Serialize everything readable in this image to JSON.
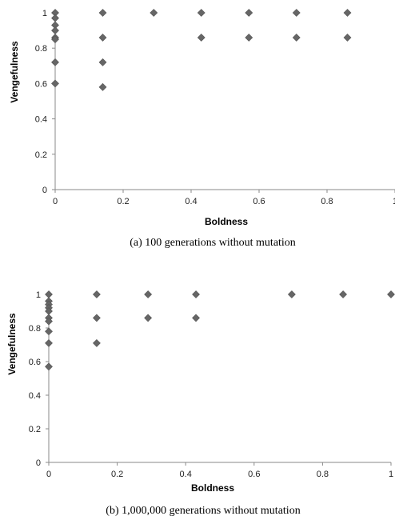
{
  "chart_data": [
    {
      "type": "scatter",
      "xlabel": "Boldness",
      "ylabel": "Vengefulness",
      "caption": "(a) 100 generations without mutation",
      "xlim": [
        0,
        1
      ],
      "ylim": [
        0,
        1
      ],
      "xticks": [
        0,
        0.2,
        0.4,
        0.6,
        0.8,
        1
      ],
      "yticks": [
        0,
        0.2,
        0.4,
        0.6,
        0.8,
        1
      ],
      "xtick_labels": [
        "0",
        "0.2",
        "0.4",
        "0.6",
        "0.8",
        "1"
      ],
      "ytick_labels": [
        "0",
        "0.2",
        "0.4",
        "0.6",
        "0.8",
        "1"
      ],
      "marker_color": "#666666",
      "grid": false,
      "points": [
        {
          "x": 0,
          "y": 1
        },
        {
          "x": 0,
          "y": 0.97
        },
        {
          "x": 0,
          "y": 0.93
        },
        {
          "x": 0,
          "y": 0.9
        },
        {
          "x": 0,
          "y": 0.86
        },
        {
          "x": 0,
          "y": 0.85
        },
        {
          "x": 0,
          "y": 0.72
        },
        {
          "x": 0,
          "y": 0.6
        },
        {
          "x": 0.14,
          "y": 1
        },
        {
          "x": 0.14,
          "y": 0.86
        },
        {
          "x": 0.14,
          "y": 0.72
        },
        {
          "x": 0.14,
          "y": 0.58
        },
        {
          "x": 0.29,
          "y": 1
        },
        {
          "x": 0.43,
          "y": 1
        },
        {
          "x": 0.43,
          "y": 0.86
        },
        {
          "x": 0.57,
          "y": 1
        },
        {
          "x": 0.57,
          "y": 0.86
        },
        {
          "x": 0.71,
          "y": 1
        },
        {
          "x": 0.71,
          "y": 0.86
        },
        {
          "x": 0.86,
          "y": 1
        },
        {
          "x": 0.86,
          "y": 0.86
        }
      ]
    },
    {
      "type": "scatter",
      "xlabel": "Boldness",
      "ylabel": "Vengefulness",
      "caption": "(b) 1,000,000 generations without mutation",
      "xlim": [
        0,
        1
      ],
      "ylim": [
        0,
        1
      ],
      "xticks": [
        0,
        0.2,
        0.4,
        0.6,
        0.8,
        1
      ],
      "yticks": [
        0,
        0.2,
        0.4,
        0.6,
        0.8,
        1
      ],
      "xtick_labels": [
        "0",
        "0.2",
        "0.4",
        "0.6",
        "0.8",
        "1"
      ],
      "ytick_labels": [
        "0",
        "0.2",
        "0.4",
        "0.6",
        "0.8",
        "1"
      ],
      "marker_color": "#666666",
      "grid": false,
      "points": [
        {
          "x": 0,
          "y": 1
        },
        {
          "x": 0,
          "y": 0.96
        },
        {
          "x": 0,
          "y": 0.94
        },
        {
          "x": 0,
          "y": 0.92
        },
        {
          "x": 0,
          "y": 0.9
        },
        {
          "x": 0,
          "y": 0.86
        },
        {
          "x": 0,
          "y": 0.84
        },
        {
          "x": 0,
          "y": 0.78
        },
        {
          "x": 0,
          "y": 0.71
        },
        {
          "x": 0,
          "y": 0.57
        },
        {
          "x": 0.14,
          "y": 1
        },
        {
          "x": 0.14,
          "y": 0.86
        },
        {
          "x": 0.14,
          "y": 0.71
        },
        {
          "x": 0.29,
          "y": 1
        },
        {
          "x": 0.29,
          "y": 0.86
        },
        {
          "x": 0.43,
          "y": 1
        },
        {
          "x": 0.43,
          "y": 0.86
        },
        {
          "x": 0.71,
          "y": 1
        },
        {
          "x": 0.86,
          "y": 1
        },
        {
          "x": 1,
          "y": 1
        }
      ]
    }
  ]
}
